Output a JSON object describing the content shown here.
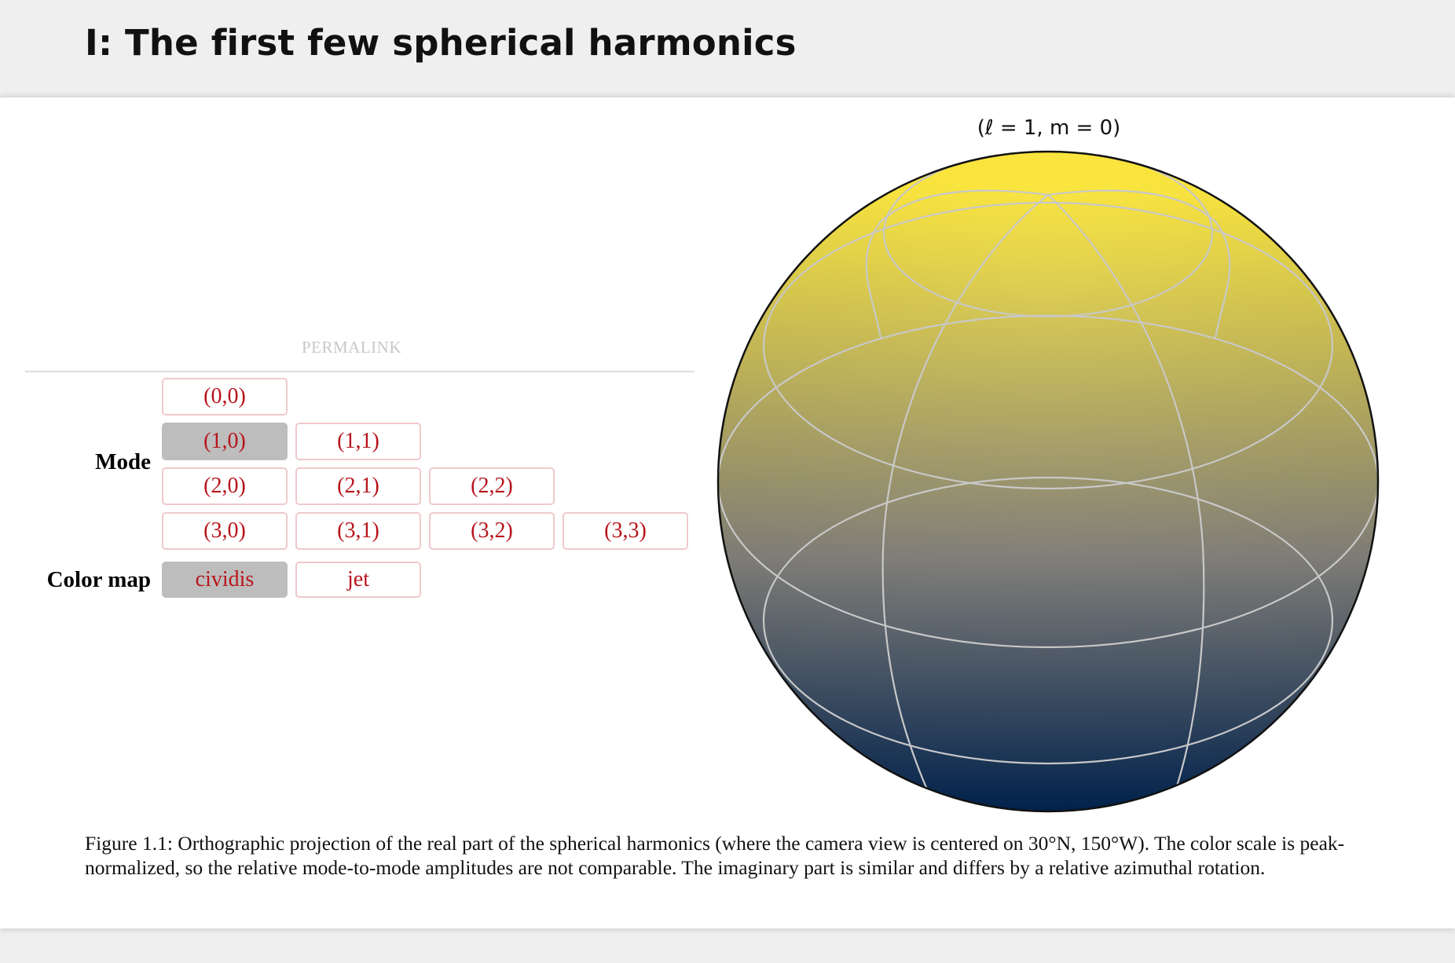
{
  "page": {
    "title": "I: The first few spherical harmonics"
  },
  "controls": {
    "permalink_label": "PERMALINK",
    "mode_label": "Mode",
    "mode_rows": [
      [
        "(0,0)"
      ],
      [
        "(1,0)",
        "(1,1)"
      ],
      [
        "(2,0)",
        "(2,1)",
        "(2,2)"
      ],
      [
        "(3,0)",
        "(3,1)",
        "(3,2)",
        "(3,3)"
      ]
    ],
    "selected_mode": "(1,0)",
    "colormap_label": "Color map",
    "colormap_options": [
      "cividis",
      "jet"
    ],
    "selected_colormap": "cividis"
  },
  "plot": {
    "title": "(ℓ = 1, m = 0)",
    "colors": {
      "top": "#fde737",
      "middle": "#7f7d78",
      "bottom": "#00224e",
      "gridlines": "#c8c8c8",
      "outline": "#111111"
    }
  },
  "caption": {
    "text": "Figure 1.1: Orthographic projection of the real part of the spherical harmonics (where the camera view is centered on 30°N, 150°W). The color scale is peak-normalized, so the relative mode-to-mode amplitudes are not comparable. The imaginary part is similar and differs by a relative azimuthal rotation."
  },
  "colors": {
    "accent_text": "#b8141b",
    "button_border": "#efc9cc",
    "selected_button": "#bdbdbd",
    "page_background": "#efefef"
  }
}
